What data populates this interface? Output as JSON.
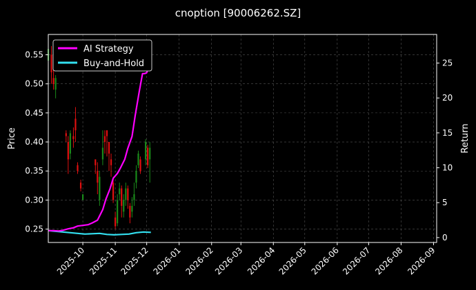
{
  "chart_data": {
    "type": "candlestick+line",
    "title": "cnoption [90006262.SZ]",
    "ylabel_left": "Price",
    "ylabel_right": "Return",
    "ylim_left": [
      0.227,
      0.585
    ],
    "ylim_right": [
      -0.7,
      29.1
    ],
    "xlim": [
      "2025-08-29",
      "2026-09-04"
    ],
    "yticks_left": [
      "0.25",
      "0.30",
      "0.35",
      "0.40",
      "0.45",
      "0.50",
      "0.55"
    ],
    "yticks_right": [
      "0",
      "5",
      "10",
      "15",
      "20",
      "25"
    ],
    "xticks": [
      "2025-10",
      "2025-11",
      "2025-12",
      "2026-01",
      "2026-02",
      "2026-03",
      "2026-04",
      "2026-05",
      "2026-06",
      "2026-07",
      "2026-08",
      "2026-09"
    ],
    "grid": true,
    "legend_position": "top-left",
    "colors": {
      "up": "#1a8a1a",
      "down": "#e01010",
      "ai": "#ff00ff",
      "bh": "#33e0f0",
      "background": "#000000"
    },
    "series": [
      {
        "name": "AI Strategy",
        "axis": "right",
        "x": [
          "2025-08-29",
          "2025-09-03",
          "2025-09-08",
          "2025-09-12",
          "2025-09-17",
          "2025-09-22",
          "2025-09-26",
          "2025-10-01",
          "2025-10-06",
          "2025-10-10",
          "2025-10-15",
          "2025-10-20",
          "2025-10-23",
          "2025-10-27",
          "2025-10-30",
          "2025-11-03",
          "2025-11-06",
          "2025-11-10",
          "2025-11-13",
          "2025-11-17",
          "2025-11-20",
          "2025-11-24",
          "2025-11-27",
          "2025-11-29",
          "2025-12-01",
          "2025-12-03",
          "2025-12-05"
        ],
        "values": [
          1.0,
          1.0,
          0.95,
          1.05,
          1.25,
          1.4,
          1.65,
          1.75,
          1.85,
          2.1,
          2.5,
          4.0,
          5.5,
          7.0,
          8.5,
          9.2,
          10.0,
          11.2,
          12.8,
          14.5,
          17.5,
          21.0,
          23.5,
          23.5,
          23.6,
          24.5,
          28.0
        ]
      },
      {
        "name": "Buy-and-Hold",
        "axis": "right",
        "x": [
          "2025-08-29",
          "2025-09-05",
          "2025-09-12",
          "2025-09-19",
          "2025-09-26",
          "2025-10-03",
          "2025-10-10",
          "2025-10-17",
          "2025-10-24",
          "2025-10-31",
          "2025-11-07",
          "2025-11-14",
          "2025-11-21",
          "2025-11-28",
          "2025-12-05"
        ],
        "values": [
          1.0,
          0.9,
          0.8,
          0.7,
          0.6,
          0.5,
          0.55,
          0.6,
          0.45,
          0.4,
          0.45,
          0.5,
          0.7,
          0.8,
          0.75
        ]
      }
    ],
    "candles": [
      {
        "x": "2025-08-29",
        "o": 0.54,
        "c": 0.56,
        "h": 0.575,
        "l": 0.52
      },
      {
        "x": "2025-09-01",
        "o": 0.55,
        "c": 0.52,
        "h": 0.565,
        "l": 0.5
      },
      {
        "x": "2025-09-03",
        "o": 0.51,
        "c": 0.5,
        "h": 0.53,
        "l": 0.49
      },
      {
        "x": "2025-09-05",
        "o": 0.49,
        "c": 0.51,
        "h": 0.515,
        "l": 0.475
      },
      {
        "x": "2025-09-15",
        "o": 0.415,
        "c": 0.41,
        "h": 0.42,
        "l": 0.4
      },
      {
        "x": "2025-09-17",
        "o": 0.4,
        "c": 0.37,
        "h": 0.41,
        "l": 0.345
      },
      {
        "x": "2025-09-19",
        "o": 0.38,
        "c": 0.415,
        "h": 0.42,
        "l": 0.37
      },
      {
        "x": "2025-09-22",
        "o": 0.41,
        "c": 0.405,
        "h": 0.425,
        "l": 0.39
      },
      {
        "x": "2025-09-24",
        "o": 0.44,
        "c": 0.42,
        "h": 0.46,
        "l": 0.4
      },
      {
        "x": "2025-09-26",
        "o": 0.36,
        "c": 0.35,
        "h": 0.365,
        "l": 0.345
      },
      {
        "x": "2025-09-29",
        "o": 0.33,
        "c": 0.32,
        "h": 0.335,
        "l": 0.315
      },
      {
        "x": "2025-10-01",
        "o": 0.3,
        "c": 0.31,
        "h": 0.31,
        "l": 0.3
      },
      {
        "x": "2025-10-13",
        "o": 0.37,
        "c": 0.36,
        "h": 0.37,
        "l": 0.345
      },
      {
        "x": "2025-10-15",
        "o": 0.35,
        "c": 0.33,
        "h": 0.365,
        "l": 0.31
      },
      {
        "x": "2025-10-17",
        "o": 0.3,
        "c": 0.34,
        "h": 0.35,
        "l": 0.29
      },
      {
        "x": "2025-10-20",
        "o": 0.37,
        "c": 0.39,
        "h": 0.42,
        "l": 0.36
      },
      {
        "x": "2025-10-22",
        "o": 0.41,
        "c": 0.4,
        "h": 0.42,
        "l": 0.38
      },
      {
        "x": "2025-10-24",
        "o": 0.42,
        "c": 0.41,
        "h": 0.42,
        "l": 0.375
      },
      {
        "x": "2025-10-26",
        "o": 0.4,
        "c": 0.38,
        "h": 0.4,
        "l": 0.35
      },
      {
        "x": "2025-10-28",
        "o": 0.37,
        "c": 0.36,
        "h": 0.38,
        "l": 0.34
      },
      {
        "x": "2025-10-30",
        "o": 0.33,
        "c": 0.3,
        "h": 0.34,
        "l": 0.295
      },
      {
        "x": "2025-11-01",
        "o": 0.27,
        "c": 0.255,
        "h": 0.28,
        "l": 0.25
      },
      {
        "x": "2025-11-03",
        "o": 0.26,
        "c": 0.3,
        "h": 0.31,
        "l": 0.255
      },
      {
        "x": "2025-11-05",
        "o": 0.31,
        "c": 0.32,
        "h": 0.33,
        "l": 0.3
      },
      {
        "x": "2025-11-07",
        "o": 0.32,
        "c": 0.29,
        "h": 0.325,
        "l": 0.27
      },
      {
        "x": "2025-11-09",
        "o": 0.28,
        "c": 0.3,
        "h": 0.31,
        "l": 0.27
      },
      {
        "x": "2025-11-11",
        "o": 0.3,
        "c": 0.32,
        "h": 0.33,
        "l": 0.29
      },
      {
        "x": "2025-11-13",
        "o": 0.32,
        "c": 0.3,
        "h": 0.325,
        "l": 0.285
      },
      {
        "x": "2025-11-15",
        "o": 0.29,
        "c": 0.27,
        "h": 0.295,
        "l": 0.26
      },
      {
        "x": "2025-11-17",
        "o": 0.28,
        "c": 0.29,
        "h": 0.305,
        "l": 0.27
      },
      {
        "x": "2025-11-19",
        "o": 0.3,
        "c": 0.31,
        "h": 0.33,
        "l": 0.29
      },
      {
        "x": "2025-11-21",
        "o": 0.33,
        "c": 0.35,
        "h": 0.36,
        "l": 0.32
      },
      {
        "x": "2025-11-23",
        "o": 0.36,
        "c": 0.38,
        "h": 0.385,
        "l": 0.355
      },
      {
        "x": "2025-11-25",
        "o": 0.37,
        "c": 0.35,
        "h": 0.375,
        "l": 0.345
      },
      {
        "x": "2025-11-30",
        "o": 0.37,
        "c": 0.4,
        "h": 0.405,
        "l": 0.36
      },
      {
        "x": "2025-12-02",
        "o": 0.39,
        "c": 0.36,
        "h": 0.395,
        "l": 0.355
      },
      {
        "x": "2025-12-04",
        "o": 0.37,
        "c": 0.39,
        "h": 0.4,
        "l": 0.33
      }
    ]
  }
}
